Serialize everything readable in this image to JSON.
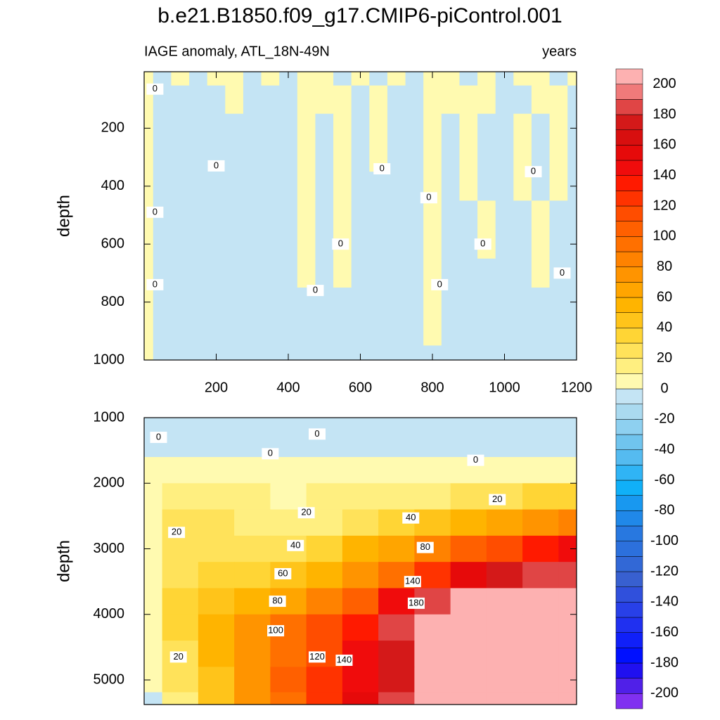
{
  "chart_data": [
    {
      "type": "contour",
      "title": "b.e21.B1850.f09_g17.CMIP6-piControl.001",
      "subtitle_left": "IAGE anomaly, ATL_18N-49N",
      "subtitle_right": "years",
      "ylabel": "depth",
      "xlim": [
        0,
        1200
      ],
      "xticks": [
        200,
        400,
        600,
        800,
        1000,
        1200
      ],
      "ylim": [
        5,
        1000
      ],
      "yticks": [
        200,
        400,
        600,
        800,
        1000
      ],
      "y_inverted": true,
      "x": [
        0,
        50,
        100,
        150,
        200,
        250,
        300,
        350,
        400,
        450,
        500,
        550,
        600,
        650,
        700,
        750,
        800,
        850,
        900,
        950,
        1000,
        1050,
        1100,
        1150,
        1200
      ],
      "y": [
        5,
        100,
        200,
        300,
        400,
        500,
        600,
        700,
        800,
        900,
        1000
      ],
      "z": [
        [
          2,
          -2,
          2,
          -2,
          2,
          2,
          -2,
          2,
          -2,
          2,
          2,
          -2,
          2,
          -2,
          2,
          -2,
          2,
          2,
          -2,
          2,
          -2,
          2,
          2,
          -2,
          2
        ],
        [
          2,
          -2,
          -2,
          -2,
          -2,
          2,
          -2,
          -2,
          -2,
          2,
          2,
          2,
          -2,
          2,
          -2,
          -2,
          2,
          2,
          2,
          2,
          -2,
          -2,
          2,
          2,
          -2
        ],
        [
          2,
          -2,
          -2,
          -2,
          -2,
          -2,
          -2,
          -2,
          -2,
          2,
          -2,
          2,
          -2,
          2,
          -2,
          -2,
          2,
          -2,
          2,
          -2,
          -2,
          2,
          -2,
          2,
          -2
        ],
        [
          2,
          -2,
          -2,
          -2,
          -2,
          -2,
          -2,
          -2,
          -2,
          2,
          -2,
          2,
          -2,
          2,
          -2,
          -2,
          2,
          -2,
          2,
          -2,
          -2,
          2,
          -2,
          2,
          -2
        ],
        [
          2,
          -2,
          -2,
          -2,
          -2,
          -2,
          -2,
          -2,
          -2,
          2,
          -2,
          2,
          -2,
          -2,
          -2,
          -2,
          2,
          -2,
          2,
          -2,
          -2,
          2,
          -2,
          2,
          -2
        ],
        [
          2,
          -2,
          -2,
          -2,
          -2,
          -2,
          -2,
          -2,
          -2,
          2,
          -2,
          2,
          -2,
          -2,
          -2,
          -2,
          2,
          -2,
          -2,
          2,
          -2,
          -2,
          2,
          -2,
          -2
        ],
        [
          2,
          -2,
          -2,
          -2,
          -2,
          -2,
          -2,
          -2,
          -2,
          2,
          -2,
          2,
          -2,
          -2,
          -2,
          -2,
          2,
          -2,
          -2,
          2,
          -2,
          -2,
          2,
          -2,
          -2
        ],
        [
          2,
          -2,
          -2,
          -2,
          -2,
          -2,
          -2,
          -2,
          -2,
          2,
          -2,
          2,
          -2,
          -2,
          -2,
          -2,
          2,
          -2,
          -2,
          -2,
          -2,
          -2,
          2,
          -2,
          -2
        ],
        [
          2,
          -2,
          -2,
          -2,
          -2,
          -2,
          -2,
          -2,
          -2,
          -2,
          -2,
          -2,
          -2,
          -2,
          -2,
          -2,
          2,
          -2,
          -2,
          -2,
          -2,
          -2,
          -2,
          -2,
          -2
        ],
        [
          2,
          -2,
          -2,
          -2,
          -2,
          -2,
          -2,
          -2,
          -2,
          -2,
          -2,
          -2,
          -2,
          -2,
          -2,
          -2,
          2,
          -2,
          -2,
          -2,
          -2,
          -2,
          -2,
          -2,
          -2
        ],
        [
          2,
          -2,
          -2,
          -2,
          -2,
          -2,
          -2,
          -2,
          -2,
          -2,
          -2,
          -2,
          -2,
          -2,
          -2,
          -2,
          -2,
          -2,
          -2,
          -2,
          -2,
          -2,
          -2,
          -2,
          -2
        ]
      ],
      "contour_labels": [
        {
          "value": 0,
          "x": 30,
          "y": 65
        },
        {
          "value": 0,
          "x": 30,
          "y": 490
        },
        {
          "value": 0,
          "x": 30,
          "y": 740
        },
        {
          "value": 0,
          "x": 200,
          "y": 330
        },
        {
          "value": 0,
          "x": 475,
          "y": 760
        },
        {
          "value": 0,
          "x": 545,
          "y": 600
        },
        {
          "value": 0,
          "x": 820,
          "y": 740
        },
        {
          "value": 0,
          "x": 940,
          "y": 600
        },
        {
          "value": 0,
          "x": 1160,
          "y": 700
        },
        {
          "value": 0,
          "x": 790,
          "y": 440
        },
        {
          "value": 0,
          "x": 1080,
          "y": 350
        },
        {
          "value": 0,
          "x": 660,
          "y": 340
        }
      ],
      "colorbar": {
        "levels": [
          -200,
          -190,
          -180,
          -170,
          -160,
          -150,
          -140,
          -130,
          -120,
          -110,
          -100,
          -90,
          -80,
          -70,
          -60,
          -50,
          -40,
          -30,
          -20,
          -10,
          0,
          10,
          20,
          30,
          40,
          50,
          60,
          70,
          80,
          90,
          100,
          110,
          120,
          130,
          140,
          150,
          160,
          170,
          180,
          190,
          200
        ],
        "colors": [
          "#8030f0",
          "#5020e8",
          "#2010f0",
          "#0010ff",
          "#1020f8",
          "#2030f0",
          "#2840e8",
          "#3050dc",
          "#3860d0",
          "#3268d6",
          "#2c70dc",
          "#2878e0",
          "#2088e8",
          "#1898f0",
          "#10b0f8",
          "#30b4f5",
          "#55bbf0",
          "#70c4ee",
          "#8ed0f0",
          "#aadaf0",
          "#c4e4f4",
          "#fffab0",
          "#ffef80",
          "#ffe25a",
          "#ffd535",
          "#ffc41a",
          "#ffb400",
          "#ffa500",
          "#ff9400",
          "#ff8200",
          "#ff7000",
          "#ff6000",
          "#ff4d00",
          "#ff3300",
          "#ff1a00",
          "#f00c0c",
          "#e60a0a",
          "#d80f0f",
          "#d41919",
          "#e04545",
          "#f07a7a",
          "#fdb1b1"
        ],
        "ticks": [
          200,
          180,
          160,
          140,
          120,
          100,
          80,
          60,
          40,
          20,
          0,
          -20,
          -40,
          -60,
          -80,
          -100,
          -120,
          -140,
          -160,
          -180,
          -200
        ]
      }
    },
    {
      "type": "contour",
      "ylabel": "depth",
      "xlim": [
        0,
        1200
      ],
      "ylim": [
        1000,
        5375
      ],
      "yticks": [
        1000,
        2000,
        3000,
        4000,
        5000
      ],
      "y_inverted": true,
      "x": [
        0,
        100,
        200,
        300,
        400,
        500,
        600,
        700,
        800,
        900,
        1000,
        1100,
        1200
      ],
      "y": [
        1000,
        1400,
        1800,
        2200,
        2600,
        3000,
        3400,
        3800,
        4200,
        4600,
        5000,
        5375
      ],
      "z": [
        [
          -5,
          -5,
          -5,
          -5,
          -5,
          -5,
          -5,
          -5,
          -5,
          -5,
          -5,
          -5,
          -5
        ],
        [
          -2,
          -2,
          -2,
          -2,
          -2,
          -2,
          -2,
          -2,
          -2,
          -2,
          -2,
          -2,
          -2
        ],
        [
          2,
          5,
          5,
          5,
          5,
          5,
          5,
          5,
          5,
          5,
          5,
          5,
          5
        ],
        [
          5,
          15,
          15,
          12,
          10,
          12,
          15,
          18,
          18,
          22,
          28,
          32,
          35
        ],
        [
          8,
          22,
          22,
          20,
          18,
          20,
          25,
          35,
          45,
          55,
          65,
          75,
          85
        ],
        [
          10,
          28,
          30,
          28,
          30,
          40,
          55,
          70,
          90,
          105,
          120,
          135,
          150
        ],
        [
          10,
          30,
          35,
          38,
          45,
          60,
          80,
          100,
          130,
          160,
          175,
          185,
          190
        ],
        [
          10,
          32,
          45,
          55,
          70,
          85,
          110,
          150,
          190,
          210,
          210,
          210,
          210
        ],
        [
          10,
          35,
          55,
          75,
          95,
          115,
          140,
          190,
          210,
          210,
          210,
          210,
          210
        ],
        [
          8,
          30,
          55,
          80,
          100,
          120,
          145,
          180,
          210,
          210,
          210,
          210,
          210
        ],
        [
          5,
          25,
          50,
          80,
          105,
          125,
          150,
          180,
          205,
          210,
          210,
          210,
          210
        ],
        [
          0,
          20,
          45,
          75,
          100,
          130,
          155,
          190,
          210,
          210,
          210,
          210,
          210
        ]
      ],
      "contour_labels": [
        {
          "value": 0,
          "x": 40,
          "y": 1300
        },
        {
          "value": 0,
          "x": 350,
          "y": 1550
        },
        {
          "value": 0,
          "x": 480,
          "y": 1250
        },
        {
          "value": 0,
          "x": 920,
          "y": 1650
        },
        {
          "value": 20,
          "x": 90,
          "y": 2750
        },
        {
          "value": 20,
          "x": 450,
          "y": 2450
        },
        {
          "value": 20,
          "x": 980,
          "y": 2250
        },
        {
          "value": 20,
          "x": 95,
          "y": 4650
        },
        {
          "value": 40,
          "x": 420,
          "y": 2950
        },
        {
          "value": 40,
          "x": 740,
          "y": 2530
        },
        {
          "value": 60,
          "x": 385,
          "y": 3380
        },
        {
          "value": 80,
          "x": 370,
          "y": 3800
        },
        {
          "value": 80,
          "x": 780,
          "y": 2980
        },
        {
          "value": 100,
          "x": 365,
          "y": 4250
        },
        {
          "value": 120,
          "x": 480,
          "y": 4650
        },
        {
          "value": 140,
          "x": 555,
          "y": 4700
        },
        {
          "value": 140,
          "x": 745,
          "y": 3500
        },
        {
          "value": 180,
          "x": 755,
          "y": 3830
        }
      ]
    }
  ]
}
